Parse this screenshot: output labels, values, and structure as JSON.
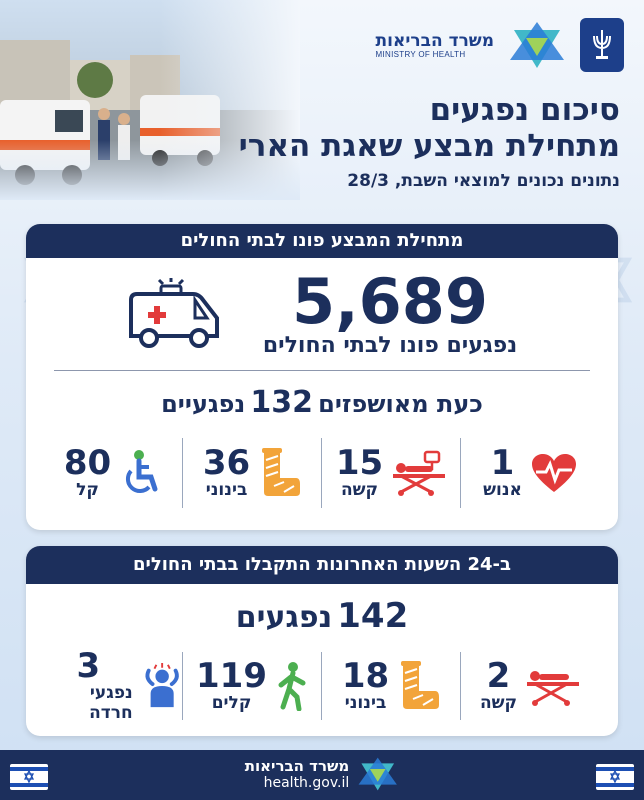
{
  "header": {
    "ministry_he": "משרד הבריאות",
    "ministry_en": "MINISTRY OF HEALTH",
    "title_line1": "סיכום נפגעים",
    "title_line2": "מתחילת מבצע שאגת הארי",
    "subtitle": "נתונים נכונים למוצאי השבת, 28/3"
  },
  "card1": {
    "heading": "מתחילת המבצע פונו לבתי החולים",
    "total": "5,689",
    "total_label": "נפגעים פונו לבתי החולים",
    "hospitalized_prefix": "כעת מאושפזים",
    "hospitalized_number": "132",
    "hospitalized_suffix": "נפגעיים",
    "stats": [
      {
        "number": "1",
        "label": "אנוש",
        "icon": "heart-pulse-icon"
      },
      {
        "number": "15",
        "label": "קשה",
        "icon": "stretcher-icon"
      },
      {
        "number": "36",
        "label": "בינוני",
        "icon": "cast-icon"
      },
      {
        "number": "80",
        "label": "קל",
        "icon": "wheelchair-icon"
      }
    ]
  },
  "card2": {
    "heading": "ב-24 השעות האחרונות התקבלו בבתי החולים",
    "total": "142",
    "total_label": "נפגעים",
    "stats": [
      {
        "number": "2",
        "label": "קשה",
        "icon": "stretcher-icon"
      },
      {
        "number": "18",
        "label": "בינוני",
        "icon": "cast-icon"
      },
      {
        "number": "119",
        "label": "קלים",
        "icon": "walking-person-icon"
      },
      {
        "number": "3",
        "label": "נפגעי חרדה",
        "icon": "anxiety-person-icon"
      }
    ]
  },
  "footer": {
    "ministry_he": "משרד הבריאות",
    "url": "health.gov.il"
  },
  "colors": {
    "navy": "#1c2f5c",
    "red": "#e23b3b",
    "orange": "#f2a43a",
    "green": "#4caf50",
    "blue": "#3b6fd0"
  }
}
